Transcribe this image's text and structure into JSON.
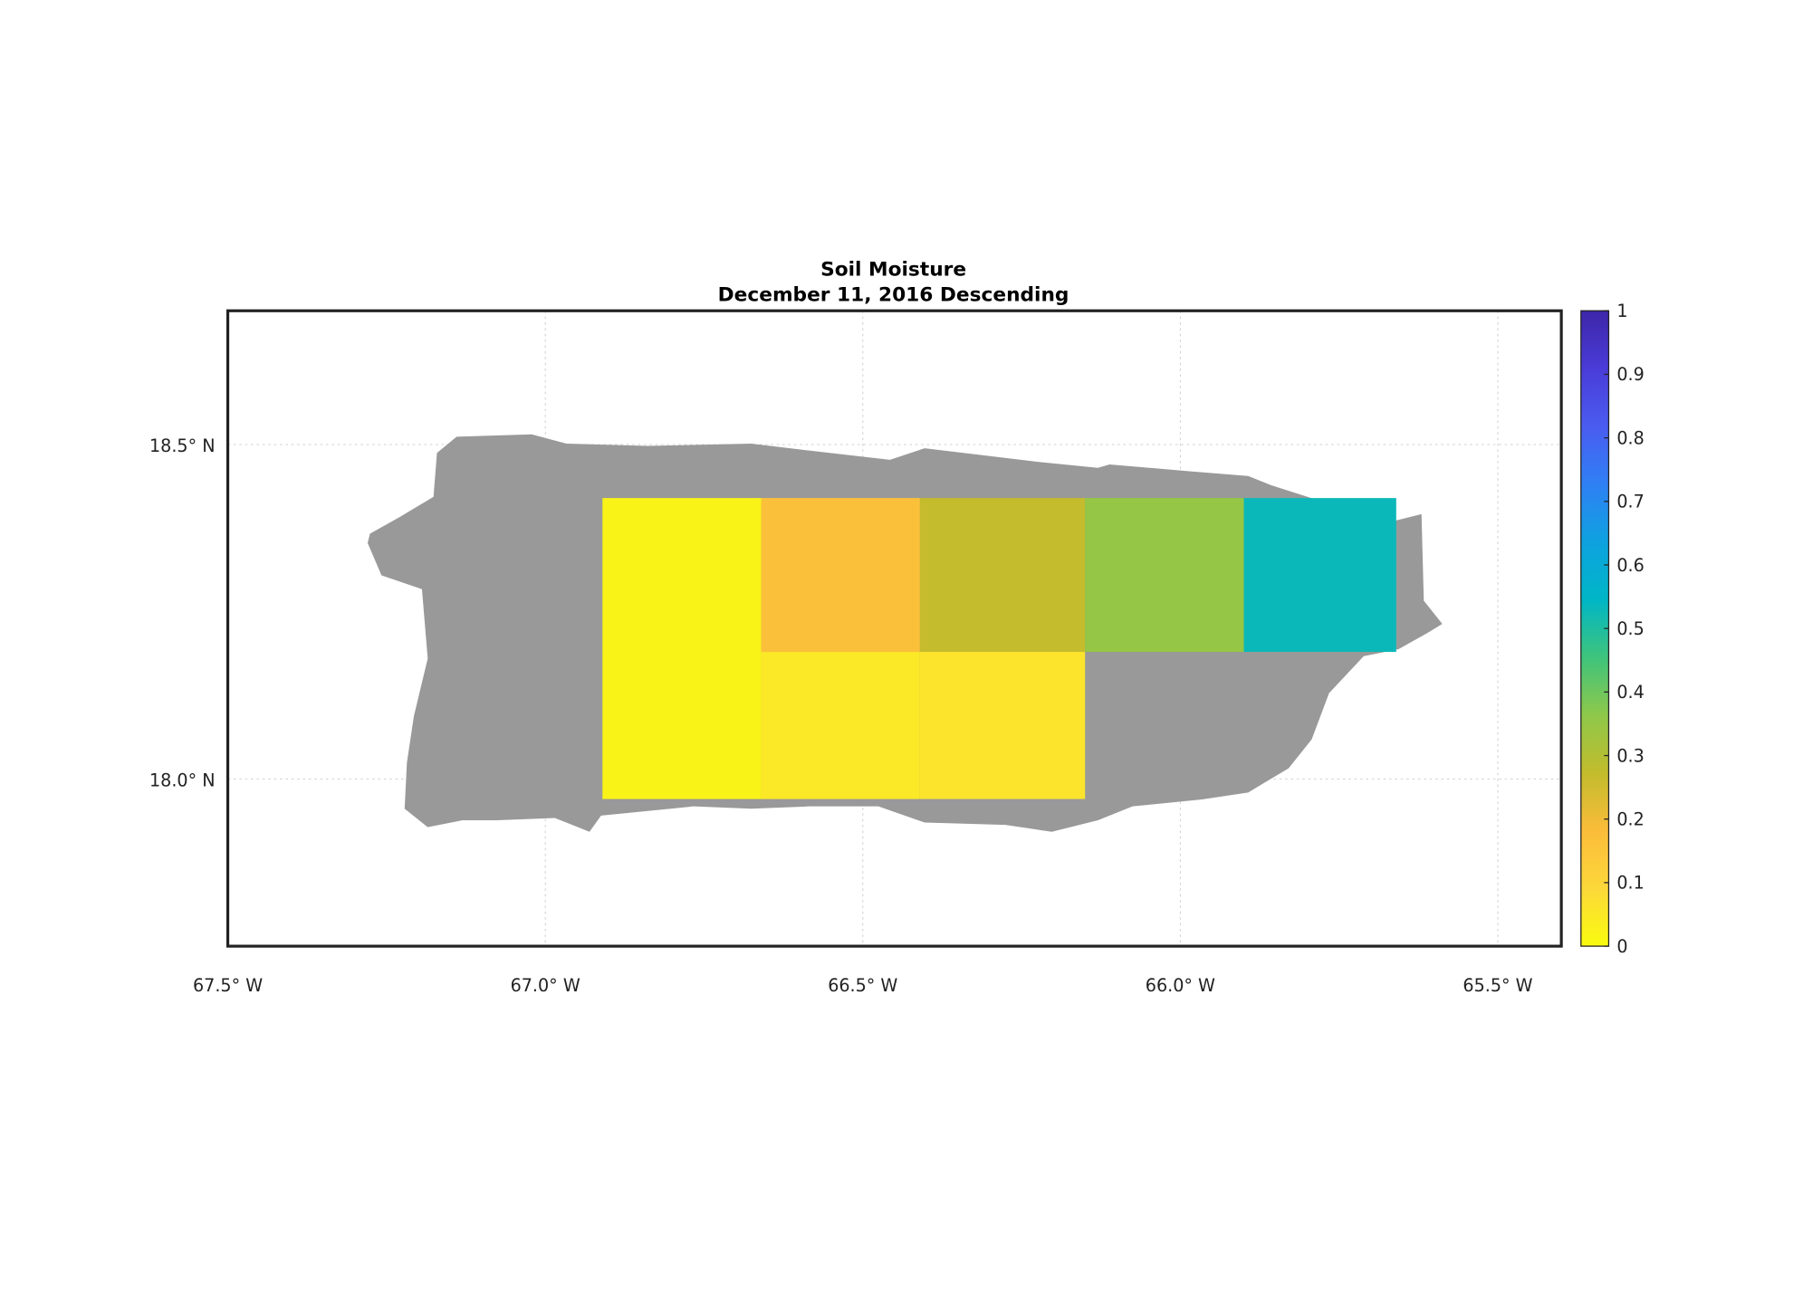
{
  "chart_data": {
    "type": "grid-map",
    "title": "Soil Moisture",
    "subtitle": "December 11, 2016 Descending",
    "xlim": [
      -67.5,
      -65.4
    ],
    "ylim": [
      17.75,
      18.7
    ],
    "xticks": [
      {
        "value": -67.5,
        "label": "67.5° W"
      },
      {
        "value": -67.0,
        "label": "67.0° W"
      },
      {
        "value": -66.5,
        "label": "66.5° W"
      },
      {
        "value": -66.0,
        "label": "66.0° W"
      },
      {
        "value": -65.5,
        "label": "65.5° W"
      }
    ],
    "yticks": [
      {
        "value": 18.0,
        "label": "18.0° N"
      },
      {
        "value": 18.5,
        "label": "18.5° N"
      }
    ],
    "grid": true,
    "colorbar": {
      "lim": [
        0,
        1
      ],
      "ticks": [
        0,
        0.1,
        0.2,
        0.3,
        0.4,
        0.5,
        0.6,
        0.7,
        0.8,
        0.9,
        1
      ],
      "colormap": [
        "#f9fb0e",
        "#fcd83a",
        "#fbbc3a",
        "#c2bc2c",
        "#8ec84a",
        "#3ec47c",
        "#00b6c6",
        "#0ea2e0",
        "#2f80f4",
        "#4a5cf0",
        "#4a3cd8",
        "#3d26a8"
      ]
    },
    "cells": [
      {
        "lon": [
          -66.91,
          -66.66
        ],
        "lat": [
          18.19,
          18.42
        ],
        "value": 0.02
      },
      {
        "lon": [
          -66.66,
          -66.41
        ],
        "lat": [
          18.19,
          18.42
        ],
        "value": 0.17
      },
      {
        "lon": [
          -66.41,
          -66.15
        ],
        "lat": [
          18.19,
          18.42
        ],
        "value": 0.27
      },
      {
        "lon": [
          -66.15,
          -65.9
        ],
        "lat": [
          18.19,
          18.42
        ],
        "value": 0.35
      },
      {
        "lon": [
          -65.9,
          -65.66
        ],
        "lat": [
          18.19,
          18.42
        ],
        "value": 0.53
      },
      {
        "lon": [
          -66.91,
          -66.66
        ],
        "lat": [
          17.97,
          18.19
        ],
        "value": 0.02
      },
      {
        "lon": [
          -66.66,
          -66.41
        ],
        "lat": [
          17.97,
          18.19
        ],
        "value": 0.05
      },
      {
        "lon": [
          -66.41,
          -66.15
        ],
        "lat": [
          17.97,
          18.19
        ],
        "value": 0.06
      }
    ]
  }
}
